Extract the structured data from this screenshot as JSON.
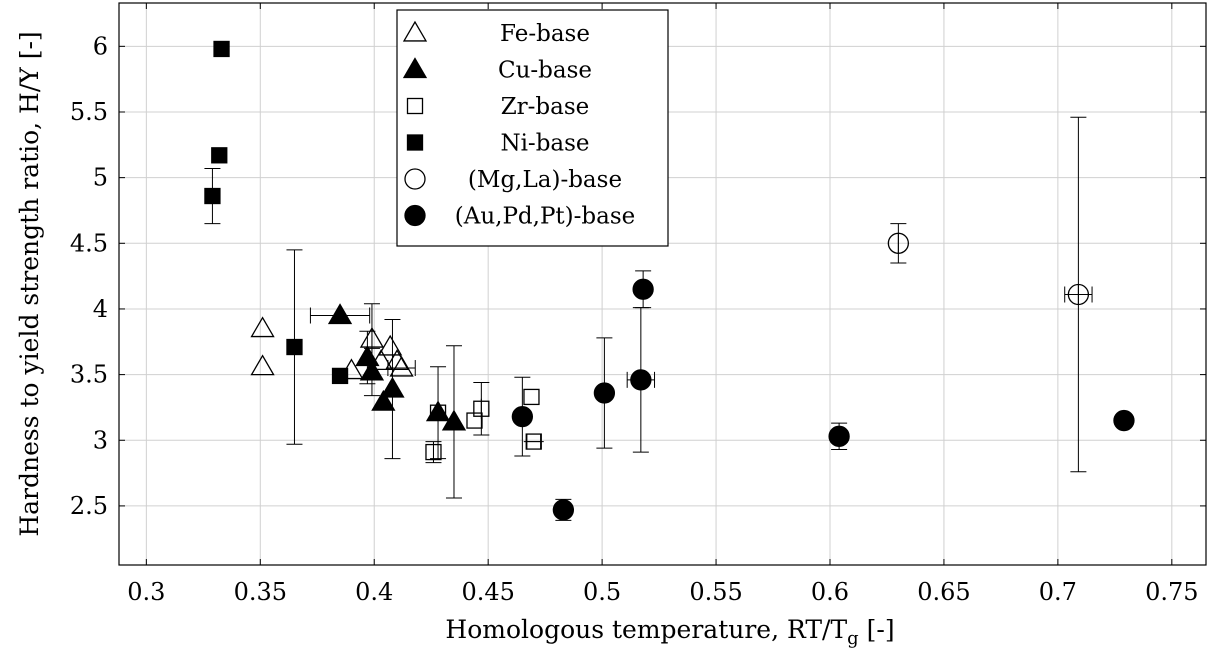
{
  "chart_data": {
    "type": "scatter",
    "xlabel": "Homologous temperature, RT/T_g [-]",
    "ylabel": "Hardness to yield strength ratio, H/Y [-]",
    "xlim": [
      0.288,
      0.765
    ],
    "ylim": [
      2.05,
      6.33
    ],
    "xticks": [
      "0.3",
      "0.35",
      "0.4",
      "0.45",
      "0.5",
      "0.55",
      "0.6",
      "0.65",
      "0.7",
      "0.75"
    ],
    "yticks": [
      "2.5",
      "3",
      "3.5",
      "4",
      "4.5",
      "5",
      "5.5",
      "6"
    ],
    "grid": true,
    "legend_position": "top-center",
    "series": [
      {
        "name": "Fe-base",
        "marker": "triangle-open",
        "points": [
          {
            "x": 0.351,
            "y": 3.85
          },
          {
            "x": 0.351,
            "y": 3.56
          },
          {
            "x": 0.39,
            "y": 3.53
          },
          {
            "x": 0.399,
            "y": 3.77,
            "yerr": 0.27
          },
          {
            "x": 0.403,
            "y": 3.6
          },
          {
            "x": 0.407,
            "y": 3.71
          },
          {
            "x": 0.41,
            "y": 3.6
          },
          {
            "x": 0.412,
            "y": 3.55,
            "xerr": 0.006
          }
        ]
      },
      {
        "name": "Cu-base",
        "marker": "triangle-filled",
        "points": [
          {
            "x": 0.385,
            "y": 3.95,
            "xerr": 0.013
          },
          {
            "x": 0.397,
            "y": 3.63,
            "yerr": 0.2
          },
          {
            "x": 0.399,
            "y": 3.52,
            "yerr": 0.18
          },
          {
            "x": 0.404,
            "y": 3.29
          },
          {
            "x": 0.408,
            "y": 3.39,
            "yerr": 0.53
          },
          {
            "x": 0.428,
            "y": 3.21,
            "yerr": 0.35
          },
          {
            "x": 0.435,
            "y": 3.14,
            "yerr": 0.58
          }
        ]
      },
      {
        "name": "Zr-base",
        "marker": "square-open",
        "points": [
          {
            "x": 0.426,
            "y": 2.91,
            "yerr": 0.08
          },
          {
            "x": 0.428,
            "y": 3.21
          },
          {
            "x": 0.444,
            "y": 3.15
          },
          {
            "x": 0.447,
            "y": 3.24,
            "yerr": 0.2
          },
          {
            "x": 0.469,
            "y": 3.33
          },
          {
            "x": 0.47,
            "y": 2.99,
            "xerr": 0.003
          }
        ]
      },
      {
        "name": "Ni-base",
        "marker": "square-filled",
        "points": [
          {
            "x": 0.333,
            "y": 5.98
          },
          {
            "x": 0.332,
            "y": 5.17
          },
          {
            "x": 0.329,
            "y": 4.86,
            "yerr": 0.21
          },
          {
            "x": 0.365,
            "y": 3.71,
            "yerr": 0.74
          },
          {
            "x": 0.385,
            "y": 3.49
          }
        ]
      },
      {
        "name": "(Mg,La)-base",
        "marker": "circle-open",
        "points": [
          {
            "x": 0.63,
            "y": 4.5,
            "yerr": 0.15
          },
          {
            "x": 0.709,
            "y": 4.11,
            "yerr": 1.35,
            "xerr": 0.006
          }
        ]
      },
      {
        "name": "(Au,Pd,Pt)-base",
        "marker": "circle-filled",
        "points": [
          {
            "x": 0.465,
            "y": 3.18,
            "yerr": 0.3
          },
          {
            "x": 0.483,
            "y": 2.47,
            "yerr": 0.08
          },
          {
            "x": 0.501,
            "y": 3.36,
            "yerr": 0.42
          },
          {
            "x": 0.517,
            "y": 3.46,
            "yerr": 0.55,
            "xerr": 0.006
          },
          {
            "x": 0.518,
            "y": 4.15,
            "yerr": 0.14
          },
          {
            "x": 0.604,
            "y": 3.03,
            "yerr": 0.1
          },
          {
            "x": 0.729,
            "y": 3.15
          }
        ]
      }
    ]
  }
}
